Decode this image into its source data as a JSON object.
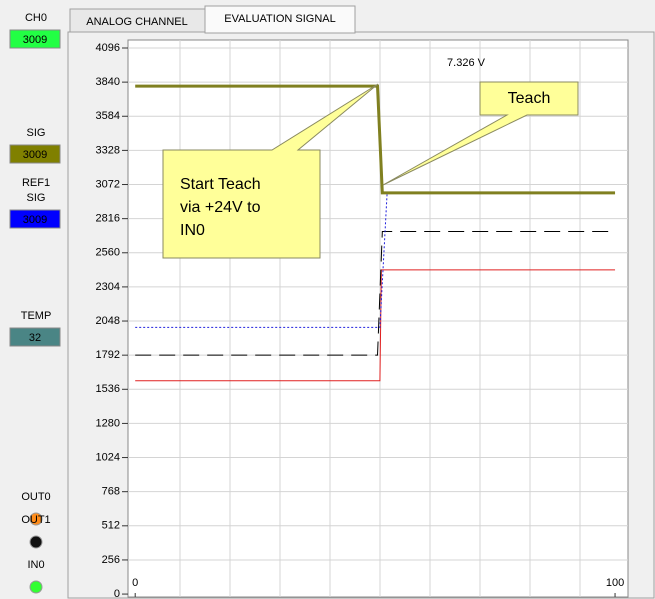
{
  "tabs": [
    "ANALOG CHANNEL",
    "EVALUATION SIGNAL"
  ],
  "indicators": [
    {
      "label": [
        "CH0"
      ],
      "value": 3009,
      "color": "#22ff44",
      "text_color": "#000000"
    },
    {
      "label": [
        "SIG"
      ],
      "value": 3009,
      "color": "#808000",
      "text_color": "#ffffff"
    },
    {
      "label": [
        "REF1",
        "SIG"
      ],
      "value": 3009,
      "color": "#0000ff",
      "text_color": "#ffffff"
    },
    {
      "label": [
        "TEMP"
      ],
      "value": 32,
      "color": "#4a8585",
      "text_color": "#ffffff"
    }
  ],
  "leds": [
    {
      "label": "OUT0",
      "color": "#ff8c1a"
    },
    {
      "label": "OUT1",
      "color": "#111111"
    },
    {
      "label": "IN0",
      "color": "#33ff33"
    }
  ],
  "chart_data": {
    "type": "line",
    "annotation": "7.326  V",
    "callouts": [
      {
        "lines": [
          "Teach"
        ]
      },
      {
        "lines": [
          "Start Teach",
          "via +24V to",
          "IN0"
        ]
      }
    ],
    "xlim": [
      -1.5,
      102.7
    ],
    "xticks": [
      0,
      100
    ],
    "ylim": [
      -22,
      4156
    ],
    "yticks": [
      0,
      256,
      512,
      768,
      1024,
      1280,
      1536,
      1792,
      2048,
      2304,
      2560,
      2816,
      3072,
      3328,
      3584,
      3840,
      4096
    ],
    "grid": true,
    "series": [
      {
        "color": "#e02020",
        "width": 1,
        "x": [
          0,
          51,
          51.3,
          100
        ],
        "values": [
          1600,
          1600,
          2432,
          2432
        ]
      },
      {
        "color": "#000000",
        "width": 1,
        "dash": "16,8",
        "x": [
          0,
          50.5,
          51.5,
          100
        ],
        "values": [
          1792,
          1792,
          2720,
          2720
        ]
      },
      {
        "color": "#2020dd",
        "width": 1,
        "dash": "2,2",
        "x": [
          0,
          51,
          52.5,
          100
        ],
        "values": [
          2000,
          2000,
          3009,
          3009
        ]
      },
      {
        "color": "#808020",
        "width": 3,
        "x": [
          0,
          50.5,
          51.5,
          100
        ],
        "values": [
          3810,
          3810,
          3009,
          3009
        ]
      }
    ]
  }
}
